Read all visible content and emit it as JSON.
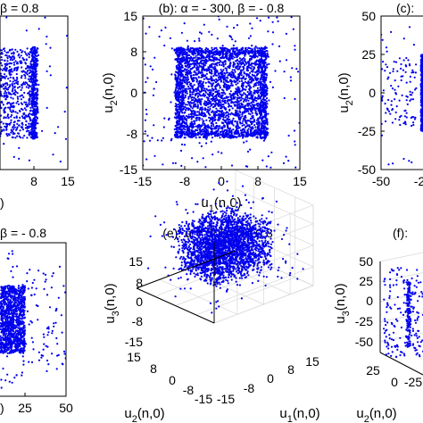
{
  "chart_data": [
    {
      "id": "a",
      "type": "scatter",
      "title": "β = 0.8",
      "xticks": [
        "8",
        "15"
      ],
      "yticks": [],
      "xlim": [
        -15,
        15
      ],
      "ylim": [
        -15,
        15
      ],
      "xlabel": "",
      "ylabel": "",
      "panel_label_fragment": ")",
      "color": "#0000ee",
      "pattern": "box with dense band at u1≈±8 (partially cropped at left)"
    },
    {
      "id": "b",
      "type": "scatter",
      "title": "(b): α = - 300, β = - 0.8",
      "xlabel": "u1(n,0)",
      "ylabel": "u2(n,0)",
      "xticks": [
        "-15",
        "-8",
        "0",
        "8",
        "15"
      ],
      "yticks": [
        "15",
        "8",
        "0",
        "-8",
        "-15"
      ],
      "xlim": [
        -15,
        15
      ],
      "ylim": [
        -15,
        15
      ],
      "color": "#0000ee",
      "pattern": "dense square cloud in [-8,8]×[-8,8] with sparse outliers"
    },
    {
      "id": "c",
      "type": "scatter",
      "title": "(c):",
      "ylabel": "u2(n,0)",
      "xticks": [
        "-50",
        "-2"
      ],
      "yticks": [
        "50",
        "25",
        "0",
        "-25",
        "-50"
      ],
      "xlim": [
        -50,
        50
      ],
      "ylim": [
        -50,
        50
      ],
      "color": "#0000ee",
      "pattern": "dense vertical band (cropped at right)"
    },
    {
      "id": "d",
      "type": "scatter",
      "title": "β = - 0.8",
      "xticks": [
        "25",
        "50"
      ],
      "yticks": [],
      "xlim": [
        -50,
        50
      ],
      "ylim": [
        -50,
        50
      ],
      "panel_label_fragment": ")",
      "color": "#0000ee",
      "pattern": "dense band ending near x=25 (cropped at left)"
    },
    {
      "id": "e",
      "type": "scatter",
      "title": "(e): α = 300, β = 0.8",
      "xlabel": "u1(n,0)",
      "ylabel": "u3(n,0)",
      "zlabel": "u2(n,0)",
      "u1_ticks": [
        "-15",
        "-8",
        "0",
        "8",
        "15"
      ],
      "u2_ticks": [
        "15",
        "8",
        "0",
        "-8",
        "-15"
      ],
      "u3_ticks": [
        "15",
        "8",
        "0",
        "-8",
        "-15"
      ],
      "u1_lim": [
        -15,
        15
      ],
      "u2_lim": [
        -15,
        15
      ],
      "u3_lim": [
        -15,
        15
      ],
      "color": "#0000ee",
      "pattern": "3D dense cube cloud in [-8,8]^3"
    },
    {
      "id": "f",
      "type": "scatter",
      "title": "(f):",
      "ylabel": "u3(n,0)",
      "zlabel": "u2(n,0)",
      "u3_ticks": [
        "50",
        "25",
        "0",
        "-25",
        "-50"
      ],
      "u2_ticks": [
        "25",
        "0"
      ],
      "u1_ticks": [
        "-25"
      ],
      "u3_lim": [
        -50,
        50
      ],
      "color": "#0000ee",
      "pattern": "3D sparse cloud (cropped at right)"
    }
  ]
}
